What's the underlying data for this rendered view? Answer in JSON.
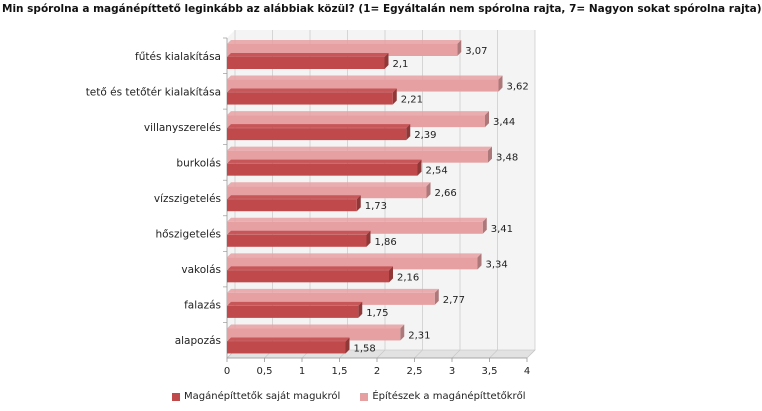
{
  "chart_data": {
    "type": "bar",
    "orientation": "horizontal",
    "title": "Min spórolna a magánépíttető leginkább az alábbiak közül? (1= Egyáltalán nem spórolna rajta, 7= Nagyon sokat spórolna rajta)",
    "categories": [
      "fűtés kialakítása",
      "tető és tetőtér kialakítása",
      "villanyszerelés",
      "burkolás",
      "vízszigetelés",
      "hőszigetelés",
      "vakolás",
      "falazás",
      "alapozás"
    ],
    "series": [
      {
        "name": "Magánépíttetők saját magukról",
        "color": "#c0494b",
        "values": [
          2.1,
          2.21,
          2.39,
          2.54,
          1.73,
          1.86,
          2.16,
          1.75,
          1.58
        ],
        "labels": [
          "2,1",
          "2,21",
          "2,39",
          "2,54",
          "1,73",
          "1,86",
          "2,16",
          "1,75",
          "1,58"
        ]
      },
      {
        "name": "Építészek a magánépíttetőkről",
        "color": "#e6a0a2",
        "values": [
          3.07,
          3.62,
          3.44,
          3.48,
          2.66,
          3.41,
          3.34,
          2.77,
          2.31
        ],
        "labels": [
          "3,07",
          "3,62",
          "3,44",
          "3,48",
          "2,66",
          "3,41",
          "3,34",
          "2,77",
          "2,31"
        ]
      }
    ],
    "xlim": [
      0,
      4
    ],
    "xticks": [
      0,
      0.5,
      1,
      1.5,
      2,
      2.5,
      3,
      3.5,
      4
    ],
    "xtick_labels": [
      "0",
      "0,5",
      "1",
      "1,5",
      "2",
      "2,5",
      "3",
      "3,5",
      "4"
    ],
    "grid": true,
    "legend_position": "bottom"
  }
}
